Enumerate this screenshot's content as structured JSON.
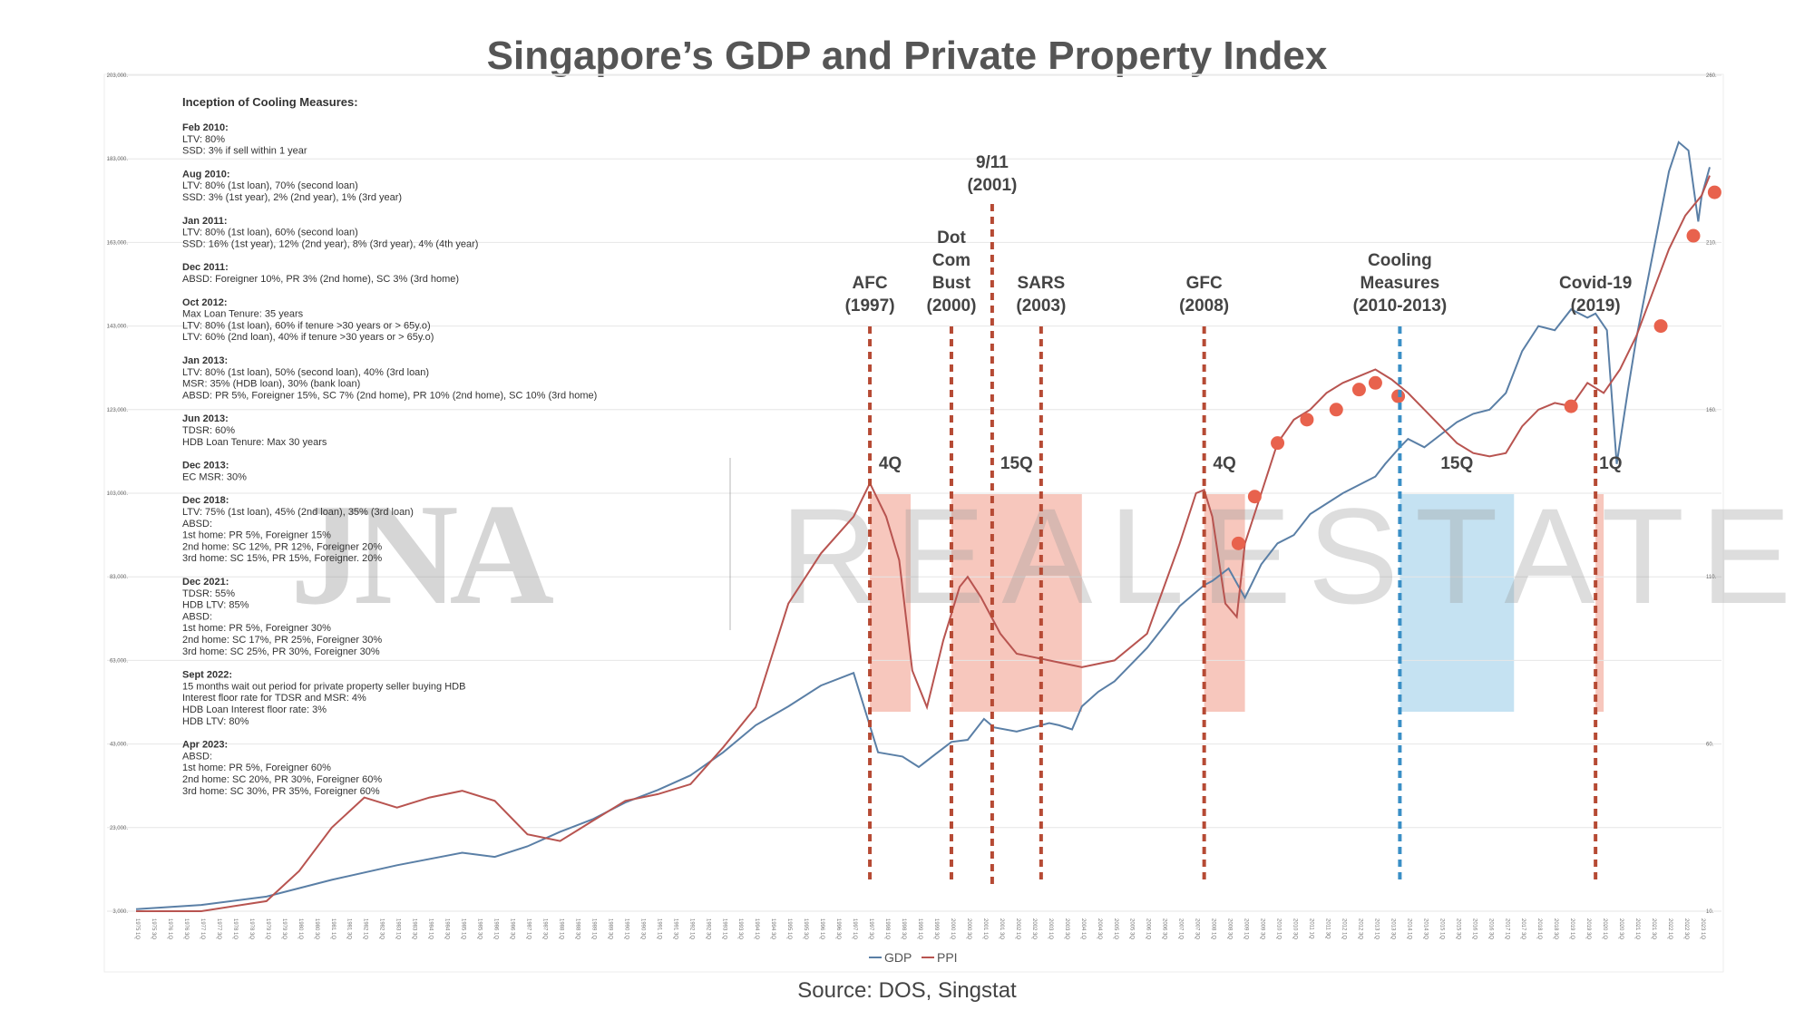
{
  "chart_data": {
    "type": "line",
    "title": "Singapore’s GDP and Private Property Index",
    "source": "Source: DOS, Singstat",
    "watermark": {
      "logo": "JNA",
      "text": "REALESTATE"
    },
    "y_left_ticks": [
      "3,000.",
      "23,000.",
      "43,000.",
      "63,000.",
      "83,000.",
      "103,000.",
      "123,000.",
      "143,000.",
      "163,000.",
      "183,000.",
      "203,000."
    ],
    "y_right_ticks": [
      "10.",
      "60.",
      "110.",
      "160.",
      "210.",
      "260."
    ],
    "ylim_left": [
      3000,
      203000
    ],
    "ylim_right": [
      10,
      260
    ],
    "x_range": [
      1975.0,
      2023.25
    ],
    "x_ticks": {
      "start_year": 1975,
      "end_year": 2023
    },
    "series": [
      {
        "name": "GDP",
        "axis": "left",
        "color": "#5a7fa6",
        "points": [
          [
            1975,
            3500
          ],
          [
            1977,
            4500
          ],
          [
            1979,
            6500
          ],
          [
            1981,
            10500
          ],
          [
            1983,
            14000
          ],
          [
            1985,
            17000
          ],
          [
            1986,
            16000
          ],
          [
            1987,
            18500
          ],
          [
            1988,
            22000
          ],
          [
            1989,
            25000
          ],
          [
            1990,
            29000
          ],
          [
            1991,
            32000
          ],
          [
            1992,
            35500
          ],
          [
            1993,
            41000
          ],
          [
            1994,
            47500
          ],
          [
            1995,
            52000
          ],
          [
            1996,
            57000
          ],
          [
            1997,
            60000
          ],
          [
            1997.75,
            41000
          ],
          [
            1998.5,
            40000
          ],
          [
            1999,
            37500
          ],
          [
            1999.5,
            40500
          ],
          [
            2000,
            43500
          ],
          [
            2000.5,
            44000
          ],
          [
            2001,
            49000
          ],
          [
            2001.3,
            47000
          ],
          [
            2002,
            46000
          ],
          [
            2002.5,
            47000
          ],
          [
            2003,
            48000
          ],
          [
            2003.3,
            47500
          ],
          [
            2003.7,
            46500
          ],
          [
            2004,
            52000
          ],
          [
            2004.5,
            55500
          ],
          [
            2005,
            58000
          ],
          [
            2006,
            66000
          ],
          [
            2007,
            76000
          ],
          [
            2007.75,
            81000
          ],
          [
            2008,
            82000
          ],
          [
            2008.5,
            85000
          ],
          [
            2009,
            78000
          ],
          [
            2009.5,
            86000
          ],
          [
            2010,
            91000
          ],
          [
            2010.5,
            93000
          ],
          [
            2011,
            98000
          ],
          [
            2012,
            103000
          ],
          [
            2013,
            107000
          ],
          [
            2013.3,
            110000
          ],
          [
            2013.75,
            114000
          ],
          [
            2014,
            116000
          ],
          [
            2014.5,
            114000
          ],
          [
            2015,
            117000
          ],
          [
            2015.5,
            120000
          ],
          [
            2016,
            122000
          ],
          [
            2016.5,
            123000
          ],
          [
            2017,
            127000
          ],
          [
            2017.5,
            137000
          ],
          [
            2018,
            143000
          ],
          [
            2018.5,
            142000
          ],
          [
            2019,
            147000
          ],
          [
            2019.5,
            145000
          ],
          [
            2019.75,
            146000
          ],
          [
            2020.1,
            142000
          ],
          [
            2020.4,
            110000
          ],
          [
            2020.75,
            128000
          ],
          [
            2021,
            140000
          ],
          [
            2021.5,
            160000
          ],
          [
            2022,
            180000
          ],
          [
            2022.3,
            187000
          ],
          [
            2022.6,
            185000
          ],
          [
            2022.9,
            168000
          ],
          [
            2023,
            174000
          ],
          [
            2023.25,
            181000
          ]
        ]
      },
      {
        "name": "PPI",
        "axis": "right",
        "color": "#b85450",
        "points": [
          [
            1975,
            10
          ],
          [
            1977,
            10
          ],
          [
            1979,
            13
          ],
          [
            1980,
            22
          ],
          [
            1981,
            35
          ],
          [
            1982,
            44
          ],
          [
            1983,
            41
          ],
          [
            1984,
            44
          ],
          [
            1985,
            46
          ],
          [
            1986,
            43
          ],
          [
            1987,
            33
          ],
          [
            1988,
            31
          ],
          [
            1989,
            37
          ],
          [
            1990,
            43
          ],
          [
            1991,
            45
          ],
          [
            1992,
            48
          ],
          [
            1993,
            59
          ],
          [
            1994,
            71
          ],
          [
            1995,
            102
          ],
          [
            1996,
            117
          ],
          [
            1997,
            128
          ],
          [
            1997.5,
            138
          ],
          [
            1998,
            128
          ],
          [
            1998.4,
            115
          ],
          [
            1998.8,
            82
          ],
          [
            1999.25,
            71
          ],
          [
            1999.75,
            91
          ],
          [
            2000.25,
            107
          ],
          [
            2000.5,
            110
          ],
          [
            2000.9,
            104
          ],
          [
            2001.5,
            93
          ],
          [
            2002,
            87
          ],
          [
            2002.5,
            86
          ],
          [
            2003,
            85
          ],
          [
            2003.5,
            84
          ],
          [
            2004,
            83
          ],
          [
            2005,
            85
          ],
          [
            2006,
            93
          ],
          [
            2007,
            120
          ],
          [
            2007.5,
            135
          ],
          [
            2007.75,
            136
          ],
          [
            2008,
            128
          ],
          [
            2008.4,
            102
          ],
          [
            2008.75,
            98
          ],
          [
            2009,
            120
          ],
          [
            2009.5,
            135
          ],
          [
            2010,
            150
          ],
          [
            2010.5,
            157
          ],
          [
            2011,
            160
          ],
          [
            2011.5,
            165
          ],
          [
            2012,
            168
          ],
          [
            2012.5,
            170
          ],
          [
            2013,
            172
          ],
          [
            2013.5,
            169
          ],
          [
            2014,
            165
          ],
          [
            2014.5,
            160
          ],
          [
            2015,
            155
          ],
          [
            2015.5,
            150
          ],
          [
            2016,
            147
          ],
          [
            2016.5,
            146
          ],
          [
            2017,
            147
          ],
          [
            2017.5,
            155
          ],
          [
            2018,
            160
          ],
          [
            2018.5,
            162
          ],
          [
            2019,
            161
          ],
          [
            2019.5,
            168
          ],
          [
            2020,
            165
          ],
          [
            2020.5,
            172
          ],
          [
            2021,
            182
          ],
          [
            2021.5,
            195
          ],
          [
            2022,
            208
          ],
          [
            2022.5,
            218
          ],
          [
            2023,
            224
          ],
          [
            2023.25,
            230
          ]
        ]
      }
    ],
    "highlighted_ppi_points": [
      [
        2008.8,
        120
      ],
      [
        2009.3,
        134
      ],
      [
        2010,
        150
      ],
      [
        2010.9,
        157
      ],
      [
        2011.8,
        160
      ],
      [
        2012.5,
        166
      ],
      [
        2013,
        168
      ],
      [
        2013.7,
        164
      ],
      [
        2019,
        161
      ],
      [
        2021.75,
        185
      ],
      [
        2022.75,
        212
      ],
      [
        2023.4,
        225
      ]
    ],
    "events": [
      {
        "label": [
          "AFC",
          "(1997)"
        ],
        "x": 1997.5,
        "color": "#b64a34"
      },
      {
        "label": [
          "Dot",
          "Com",
          "Bust",
          "(2000)"
        ],
        "x": 2000.0,
        "color": "#b64a34"
      },
      {
        "label": [
          "9/11",
          "(2001)"
        ],
        "x": 2001.25,
        "color": "#b64a34"
      },
      {
        "label": [
          "SARS",
          "(2003)"
        ],
        "x": 2002.75,
        "color": "#b64a34"
      },
      {
        "label": [
          "GFC",
          "(2008)"
        ],
        "x": 2007.75,
        "color": "#b64a34"
      },
      {
        "label": [
          "Cooling",
          "Measures",
          "(2010-2013)"
        ],
        "x": 2013.75,
        "color": "#3a8fc6"
      },
      {
        "label": [
          "Covid-19",
          "(2019)"
        ],
        "x": 2019.75,
        "color": "#b64a34"
      }
    ],
    "periods": [
      {
        "label": "4Q",
        "from": 1997.5,
        "to": 1998.75,
        "color": "#f1a191"
      },
      {
        "label": "15Q",
        "from": 2000.0,
        "to": 2004.0,
        "color": "#f1a191"
      },
      {
        "label": "4Q",
        "from": 2007.75,
        "to": 2009.0,
        "color": "#f1a191"
      },
      {
        "label": "15Q",
        "from": 2013.75,
        "to": 2017.25,
        "color": "#9fcfea"
      },
      {
        "label": "1Q",
        "from": 2019.75,
        "to": 2020.0,
        "color": "#f1a191"
      }
    ],
    "legend": [
      "GDP",
      "PPI"
    ],
    "legend_position": "bottom"
  },
  "cooling_measures": {
    "title": "Inception of Cooling Measures:",
    "items": [
      {
        "head": "Feb 2010:",
        "lines": [
          "LTV: 80%",
          "SSD: 3% if sell within 1 year"
        ]
      },
      {
        "head": "Aug 2010:",
        "lines": [
          "LTV: 80% (1st loan), 70% (second loan)",
          "SSD: 3% (1st year), 2% (2nd year), 1% (3rd year)"
        ]
      },
      {
        "head": "Jan 2011:",
        "lines": [
          "LTV: 80% (1st loan), 60% (second loan)",
          "SSD: 16% (1st year), 12% (2nd year), 8% (3rd year), 4% (4th year)"
        ]
      },
      {
        "head": "Dec 2011:",
        "lines": [
          "ABSD: Foreigner 10%, PR 3% (2nd home), SC 3% (3rd home)"
        ]
      },
      {
        "head": "Oct 2012:",
        "lines": [
          "Max Loan Tenure: 35 years",
          "LTV: 80% (1st loan), 60% if tenure >30 years or > 65y.o)",
          "LTV: 60% (2nd loan), 40% if tenure >30 years or > 65y.o)"
        ]
      },
      {
        "head": "Jan 2013:",
        "lines": [
          "LTV: 80% (1st loan), 50% (second loan), 40% (3rd loan)",
          "MSR: 35% (HDB loan), 30% (bank loan)",
          "ABSD: PR 5%, Foreigner 15%, SC 7% (2nd home), PR 10% (2nd home), SC 10% (3rd home)"
        ]
      },
      {
        "head": "Jun 2013:",
        "lines": [
          "TDSR: 60%",
          "HDB Loan Tenure: Max 30 years"
        ]
      },
      {
        "head": "Dec 2013:",
        "lines": [
          "EC MSR: 30%"
        ]
      },
      {
        "head": "Dec 2018:",
        "lines": [
          "LTV: 75% (1st loan), 45% (2nd loan), 35% (3rd loan)",
          "ABSD:",
          "1st home: PR 5%, Foreigner 15%",
          "2nd home: SC 12%, PR 12%, Foreigner 20%",
          "3rd home: SC 15%, PR 15%, Foreigner. 20%"
        ]
      },
      {
        "head": "Dec 2021:",
        "lines": [
          "TDSR: 55%",
          "HDB LTV: 85%",
          "ABSD:",
          "1st home: PR 5%, Foreigner 30%",
          "2nd home: SC 17%, PR 25%, Foreigner 30%",
          "3rd home: SC 25%, PR 30%, Foreigner 30%"
        ]
      },
      {
        "head": "Sept 2022:",
        "lines": [
          "15 months wait out period for private property seller buying HDB",
          "Interest floor rate for TDSR and MSR: 4%",
          "HDB Loan Interest floor rate: 3%",
          "HDB LTV: 80%"
        ]
      },
      {
        "head": "Apr 2023:",
        "lines": [
          "ABSD:",
          "1st home: PR 5%, Foreigner 60%",
          "2nd home: SC 20%, PR 30%, Foreigner 60%",
          "3rd home: SC 30%, PR 35%, Foreigner 60%"
        ]
      }
    ]
  }
}
